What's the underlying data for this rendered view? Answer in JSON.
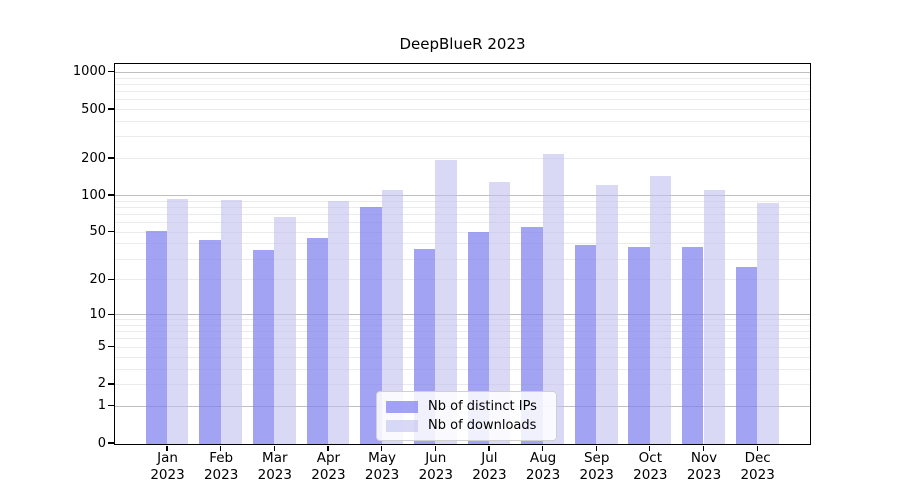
{
  "title": "DeepBlueR 2023",
  "chart_data": {
    "type": "bar",
    "title": "DeepBlueR 2023",
    "categories": [
      "Jan 2023",
      "Feb 2023",
      "Mar 2023",
      "Apr 2023",
      "May 2023",
      "Jun 2023",
      "Jul 2023",
      "Aug 2023",
      "Sep 2023",
      "Oct 2023",
      "Nov 2023",
      "Dec 2023"
    ],
    "series": [
      {
        "name": "Nb of distinct IPs",
        "color": "rgba(128,128,240,0.72)",
        "values": [
          52,
          44,
          36,
          45,
          81,
          37,
          51,
          56,
          40,
          38,
          38,
          26
        ]
      },
      {
        "name": "Nb of downloads",
        "color": "rgba(192,192,240,0.60)",
        "values": [
          95,
          93,
          68,
          92,
          112,
          197,
          130,
          222,
          123,
          145,
          113,
          88
        ]
      }
    ],
    "yscale": "log1p",
    "yticks": [
      0,
      1,
      2,
      5,
      10,
      20,
      50,
      100,
      200,
      500,
      1000
    ],
    "ylim": [
      0,
      1227
    ],
    "xlabel": "",
    "ylabel": "",
    "grid": "on",
    "grid_major_color": "#bfbfbf",
    "grid_minor_color": "#ebebeb",
    "legend_position": "lower-center"
  }
}
